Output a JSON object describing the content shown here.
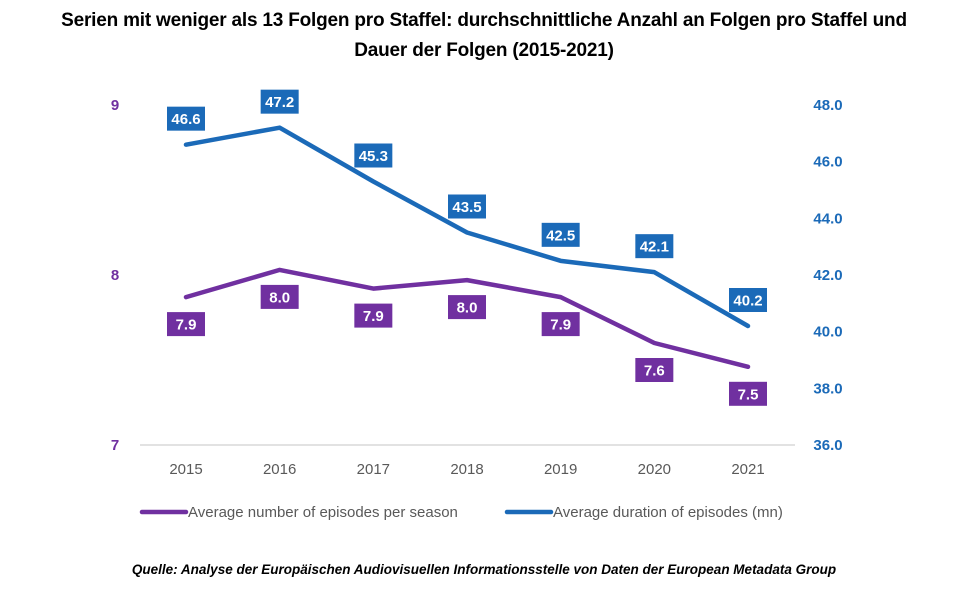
{
  "chart_data": {
    "type": "line",
    "title": "Serien mit weniger als 13 Folgen pro Staffel: durchschnittliche Anzahl an Folgen pro Staffel und Dauer der Folgen (2015-2021)",
    "title_lines": [
      "Serien mit weniger als 13 Folgen pro Staffel: durchschnittliche Anzahl an Folgen pro Staffel und",
      "Dauer der Folgen (2015-2021)"
    ],
    "x": [
      "2015",
      "2016",
      "2017",
      "2018",
      "2019",
      "2020",
      "2021"
    ],
    "xlabel": "",
    "series": [
      {
        "name": "Average number of episodes per season",
        "axis": "left",
        "color": "#7030a0",
        "values": [
          7.87,
          8.03,
          7.92,
          7.97,
          7.87,
          7.6,
          7.46
        ],
        "labels": [
          "7.9",
          "8.0",
          "7.9",
          "8.0",
          "7.9",
          "7.6",
          "7.5"
        ],
        "label_position": [
          "below",
          "below",
          "below",
          "below",
          "below",
          "below",
          "below"
        ]
      },
      {
        "name": "Average duration of episodes (mn)",
        "axis": "right",
        "color": "#1b6ab8",
        "values": [
          46.6,
          47.2,
          45.3,
          43.5,
          42.5,
          42.1,
          40.2
        ],
        "labels": [
          "46.6",
          "47.2",
          "45.3",
          "43.5",
          "42.5",
          "42.1",
          "40.2"
        ],
        "label_position": [
          "above",
          "above",
          "above",
          "above",
          "above",
          "above",
          "above"
        ]
      }
    ],
    "y_left": {
      "range": [
        7,
        9
      ],
      "ticks": [
        "7",
        "8",
        "9"
      ]
    },
    "y_right": {
      "range": [
        36,
        48
      ],
      "ticks": [
        "36.0",
        "38.0",
        "40.0",
        "42.0",
        "44.0",
        "46.0",
        "48.0"
      ]
    },
    "grid": false,
    "legend": "bottom"
  },
  "source": "Quelle: Analyse der Europäischen Audiovisuellen Informationsstelle von Daten der European Metadata Group"
}
